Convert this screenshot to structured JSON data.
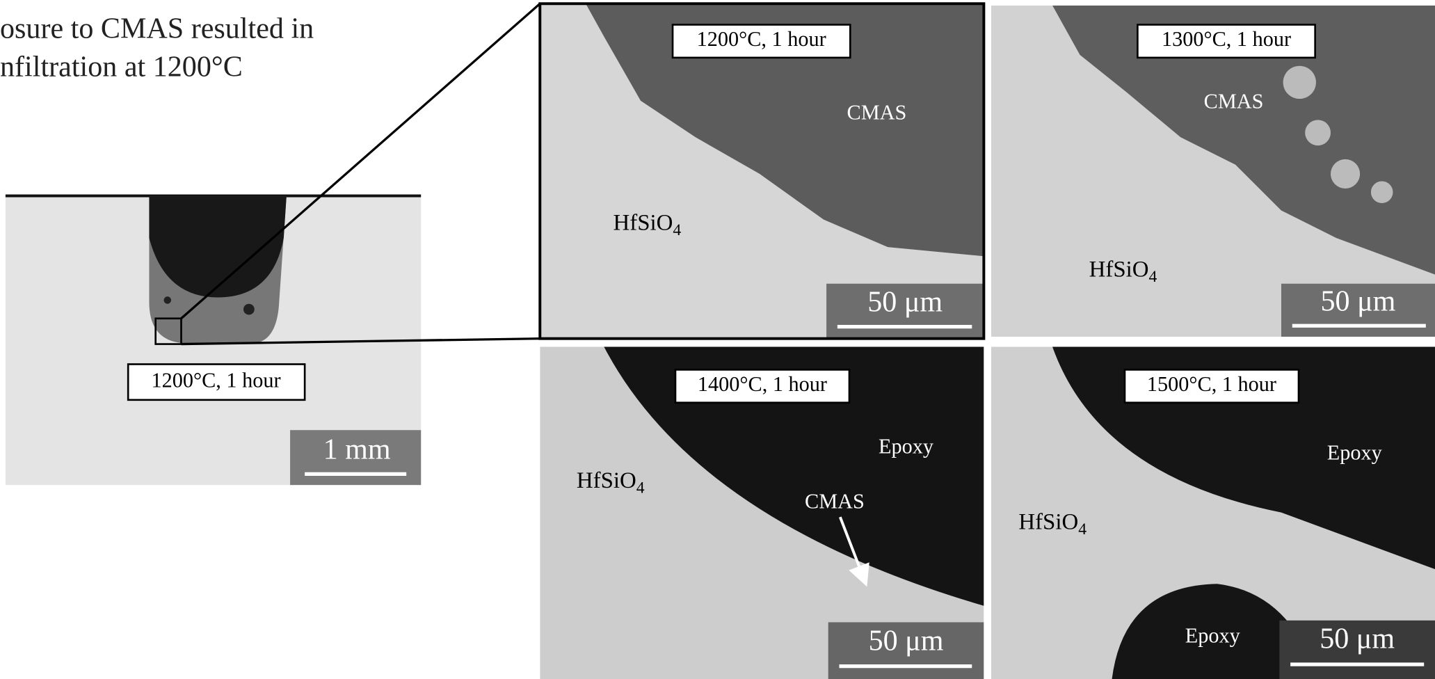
{
  "caption_lines": [
    "osure to CMAS resulted in",
    "nfiltration at 1200°C"
  ],
  "overview": {
    "label": "1200°C, 1 hour",
    "scale_bar": "1 mm"
  },
  "panels": [
    {
      "label": "1200°C, 1 hour",
      "annotations": [
        {
          "text": "CMAS"
        },
        {
          "text": "HfSiO",
          "sub": "4"
        }
      ],
      "scale_bar": "50 μm"
    },
    {
      "label": "1300°C, 1 hour",
      "annotations": [
        {
          "text": "CMAS"
        },
        {
          "text": "HfSiO",
          "sub": "4"
        }
      ],
      "scale_bar": "50 μm"
    },
    {
      "label": "1400°C, 1 hour",
      "annotations": [
        {
          "text": "Epoxy"
        },
        {
          "text": "CMAS"
        },
        {
          "text": "HfSiO",
          "sub": "4"
        }
      ],
      "scale_bar": "50 μm"
    },
    {
      "label": "1500°C, 1 hour",
      "annotations": [
        {
          "text": "Epoxy"
        },
        {
          "text": "Epoxy"
        },
        {
          "text": "HfSiO",
          "sub": "4"
        }
      ],
      "scale_bar": "50 μm"
    }
  ]
}
